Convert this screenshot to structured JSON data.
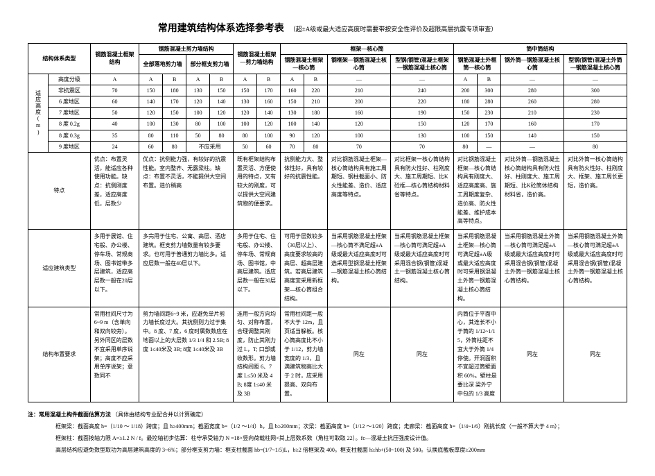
{
  "title": {
    "main": "常用建筑结构体系选择参考表",
    "sub": "（超±A级或最大适应高度时需要带按安全性评价及超限高层抗震专项审查）"
  },
  "headers": {
    "system_type": "结构体系类型",
    "frame": "钢筋混凝土框架结构",
    "shear_wall": "钢筋混凝土剪力墙结构",
    "shear_wall_full": "全部落地剪力墙",
    "shear_wall_partial": "部分框支剪力墙",
    "frame_shear": "钢筋混凝土框架—剪力墙结构",
    "frame_core": "框架—核心筒",
    "frame_core_rc": "钢筋混凝土框架—核心筒",
    "frame_core_steel": "钢框架—钢筋混凝土核心筒",
    "frame_core_src": "型钢(钢管)混凝土框架—钢筋混凝土核心筒",
    "tube_in_tube": "筒中筒结构",
    "tube_rc": "钢筋混凝土外框筒—核心筒",
    "tube_steel": "钢外筒—钢筋混凝土核心筒",
    "tube_src": "型钢(钢管)混凝土外筒—钢筋混凝土核心筒",
    "height_group": "适应高度(m)",
    "height_grade": "高度分级",
    "non_seismic": "非抗震区",
    "zone6": "6 度地区",
    "zone7": "7 度地区",
    "zone8_02": "8 度 0.2g",
    "zone8_03": "8 度 0.3g",
    "zone9": "9 度地区",
    "A": "A",
    "B": "B",
    "features": "特点",
    "building_type": "适应建筑类型",
    "layout_req": "结构布置要求",
    "not_appropriate": "不应采用",
    "dash": "—",
    "same_left": "同左"
  },
  "data": {
    "non_seismic": {
      "frame": "70",
      "sw_a": "150",
      "sw_b": "180",
      "swp_a": "130",
      "swp_b": "150",
      "fs_a": "150",
      "fs_b": "170",
      "fc_a": "160",
      "fc_b": "220",
      "fc_steel": "210",
      "fc_src": "240",
      "tt_a": "200",
      "tt_b": "300",
      "tt_steel": "280",
      "tt_src": "300"
    },
    "zone6": {
      "frame": "60",
      "sw_a": "140",
      "sw_b": "170",
      "swp_a": "120",
      "swp_b": "140",
      "fs_a": "130",
      "fs_b": "160",
      "fc_a": "150",
      "fc_b": "210",
      "fc_steel": "200",
      "fc_src": "220",
      "tt_a": "180",
      "tt_b": "280",
      "tt_steel": "260",
      "tt_src": "280"
    },
    "zone7": {
      "frame": "50",
      "sw_a": "120",
      "sw_b": "150",
      "swp_a": "100",
      "swp_b": "120",
      "fs_a": "120",
      "fs_b": "140",
      "fc_a": "130",
      "fc_b": "180",
      "fc_steel": "160",
      "fc_src": "190",
      "tt_a": "150",
      "tt_b": "230",
      "tt_steel": "210",
      "tt_src": "230"
    },
    "zone8_02": {
      "frame": "40",
      "sw_a": "100",
      "sw_b": "130",
      "swp_a": "80",
      "swp_b": "100",
      "fs_a": "100",
      "fs_b": "120",
      "fc_a": "100",
      "fc_b": "140",
      "fc_steel": "120",
      "fc_src": "150",
      "tt_a": "120",
      "tt_b": "170",
      "tt_steel": "160",
      "tt_src": "170"
    },
    "zone8_03": {
      "frame": "35",
      "sw_a": "80",
      "sw_b": "110",
      "swp_a": "50",
      "swp_b": "80",
      "fs_a": "80",
      "fs_b": "100",
      "fc_a": "90",
      "fc_b": "120",
      "fc_steel": "100",
      "fc_src": "130",
      "tt_a": "100",
      "tt_b": "150",
      "tt_steel": "140",
      "tt_src": "150"
    },
    "zone9": {
      "frame": "24",
      "sw_a": "60",
      "sw_b": "80",
      "fs_a": "50",
      "fs_b": "60",
      "fc_a": "70",
      "fc_b": "80",
      "fc_steel": "70",
      "fc_src": "70",
      "tt_a": "80",
      "tt_b": "—",
      "tt_steel": "—",
      "tt_src": "80"
    }
  },
  "features": {
    "frame": "优点：布置灵活，能适应各种使用功能。缺点：抗侧刚度差，适应高度低，层数少",
    "shear_wall": "优点：抗侧能力强，有较好的抗震性能。室内整齐、无露梁柱。缺点：布置不灵活，不能提供大空间布置。造价稍高",
    "frame_shear": "既有框架结构布置灵活、方便使用的特点，又有较大的刚度，可以提供大空间建筑物的便要求。",
    "frame_core_rc": "抗侧能力大、整体性好，具有较好的抗震性能。",
    "frame_core_steel": "对比钢筋混凝土框架—核心筒结构具有施工周期短、钢柱截面小、防火性能差、造价、适应高度等特点。",
    "frame_core_src": "对比框架一核心筒结构具有防火性好、柱刚度大、施工周期短、比K砼框—核心筒结构材料省等特点。",
    "tube_rc": "对比钢筋混凝土框架—核心筒结构具有刚度大、适应高度高、施工周期度复杂、造价高、防火性能差、维护成本高等特点。",
    "tube_steel": "对比外筒—钢筋混凝土核心筒结构具有防火性好、柱刚度大、施工周期短、比K砼筒体结构材料省，造价高。",
    "tube_src": "对比外筒一核心筒结构具有防火性好、柱刚度大、框架、施工周长更短，造价高。"
  },
  "building_types": {
    "frame": "多用于展馆、住宅般、办公楼、停车场、常规商场、图书馆带多层建筑，适应高层数一般在20层以下。",
    "shear_wall": "多完用于住宅、公寓、高层、酒店建筑。框支剪力墙数量有较多要求。也可用于普通剪力墙比多。适应层数一般在40层以下。",
    "frame_shear": "多用于住宅、住宅般、办公楼、停车场、常规商场、图书馆，中高层建筑。适应层数一般在30层以下。",
    "frame_core_rc": "可用于层数较多（30层以上）、高度要求较高的高层、超高层建筑。若高层建筑高度宜采用新框架—核心筒组合结构。",
    "frame_core_steel": "当采用钢筋混凝土框架—核心筒不满足超±A级或最大适应高度时可选采用型钢混凝土框架—钢筋混凝土核心筒结构。",
    "frame_core_src": "当采用钢筋混凝土框架—核心筒可满足超±A级或最大适应高度时可采用混合钢(钢管)混凝土一钢筋混凝土核心筒结构。",
    "tube_rc": "当采用钢筋混凝土框架—核心筒可满足超±A级或最大适应高度时可采用钢混凝土外筒一钢筋混凝土核心筒结构。",
    "tube_steel": "当采用钢筋混凝土外筒—核心筒可满足超±A级或最大适应高度时可采用混合钢(钢管)混凝土外筒一钢筋混凝土核心筒结构。",
    "tube_src": "当采用钢筋混凝土外筒—核心筒可满足超±A级或最大适应高度时可采用混合钢(钢管)混凝土外筒一钢筋混凝土核心筒结构。"
  },
  "layouts": {
    "frame": "常用柱间尺寸为6~9 m（含单向和双向较旁）。另外同区的层数不宜采用单序说架；高度不应采用单序说架；意数同不",
    "shear_wall": "剪力墙间距6~9 米，应避免单片剪力墙长度过大。其抗侧则力过于集中。8 度、7 度，6 度时属数数应在地面以上的大层数 1/3 1/4 和 2.5B; 8度 1≤40米及 3B; 8度 1≤40米及 3B",
    "frame_shear": "连用一般方向均匀、对称布置，合理调整其刚度，防止其刚力过 L，T; 口部或收数形。剪力墙结构间距 6、7 度 L≤50 米及 4B; 8度 1≤40 米及 3B",
    "frame_core_rc": "常用柱间距一般不大于 12m，且页适当躲板。核心筒高度比不小于 1/12，剪力墙宽度的 1/3，且满建筑物高比大于 2 时，应采用提高、双向布置。",
    "frame_core_steel": "同左",
    "frame_core_src": "同左",
    "tube_rc": "内筒位于平面中心，其连长不小于筒的 1/12~1/15，外筒柱距不宜大于外筒 1/4 停使。开洞面积不宜超过筒壁面积 60%。壁柱是要比深 梁外宁中包的 1/3 高度",
    "tube_steel": "同左",
    "tube_src": "同左"
  },
  "notes": {
    "title": "注：常用混凝土构件截面估算方法",
    "extra": "（具体由结构专业配合并以计算确定）",
    "line1": "框架梁：截面高度 h=（1/10 ～ 1/18）跨度；且 h≥400mm；截面宽度 b=（1/2 ～1/4）h，且 b≥200mm；次梁：截面高度 h=（1/12 ～1/20）跨度；走廊梁：截面高度 h=（1/4~1/6）刚挑长度（一般不算大于 4 m）；",
    "line2": "框架柱：截面按轴力限 A=≥1.2 N / f。最控轴初步估算：柱守承受轴力 N =18×竖向荷载柱网×其上层数系数（角柱可取取 22）。fc—混凝土抗压强度设计值。",
    "line3": "高层结构应避免数型取功为高层建筑高度的 3~6%；部分框支剪力墙：框支柱截面 hb=(1/7~1/5)L，b≥2 倍框架及 400。框支柱截面 h≥hb+(50~100) 及 500。认换底截板厚度≥200mm"
  }
}
